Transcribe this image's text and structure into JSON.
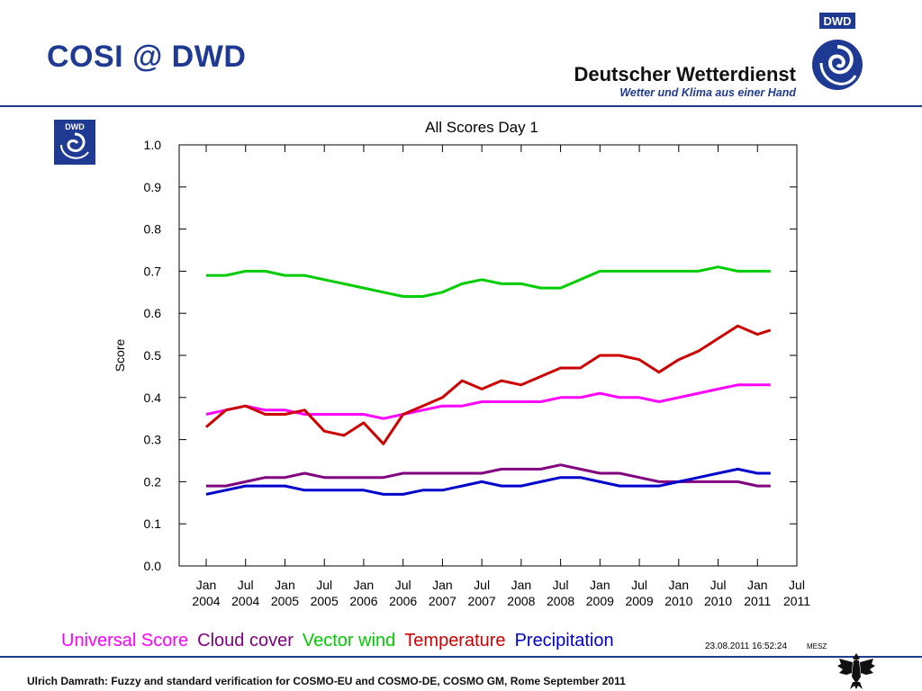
{
  "slide": {
    "title": "COSI @ DWD",
    "brand_name": "Deutscher Wetterdienst",
    "brand_slogan": "Wetter und Klima aus einer Hand",
    "logo_text": "DWD",
    "small_logo_text": "DWD",
    "footer": "Ulrich Damrath: Fuzzy and standard verification for COSMO-EU and COSMO-DE, COSMO GM, Rome September 2011",
    "accent_color": "#1f3a93"
  },
  "chart_data": {
    "type": "line",
    "title": "All Scores  Day 1",
    "xlabel": "",
    "ylabel": "Score",
    "ylim": [
      0,
      1
    ],
    "yticks": [
      "0.0",
      "0.1",
      "0.2",
      "0.3",
      "0.4",
      "0.5",
      "0.6",
      "0.7",
      "0.8",
      "0.9",
      "1.0"
    ],
    "xlim": [
      "2004-01",
      "2011-07"
    ],
    "xticks": [
      {
        "month": "Jan",
        "year": "2004"
      },
      {
        "month": "Jul",
        "year": "2004"
      },
      {
        "month": "Jan",
        "year": "2005"
      },
      {
        "month": "Jul",
        "year": "2005"
      },
      {
        "month": "Jan",
        "year": "2006"
      },
      {
        "month": "Jul",
        "year": "2006"
      },
      {
        "month": "Jan",
        "year": "2007"
      },
      {
        "month": "Jul",
        "year": "2007"
      },
      {
        "month": "Jan",
        "year": "2008"
      },
      {
        "month": "Jul",
        "year": "2008"
      },
      {
        "month": "Jan",
        "year": "2009"
      },
      {
        "month": "Jul",
        "year": "2009"
      },
      {
        "month": "Jan",
        "year": "2010"
      },
      {
        "month": "Jul",
        "year": "2010"
      },
      {
        "month": "Jan",
        "year": "2011"
      },
      {
        "month": "Jul",
        "year": "2011"
      }
    ],
    "x": [
      "2004-01",
      "2004-04",
      "2004-07",
      "2004-10",
      "2005-01",
      "2005-04",
      "2005-07",
      "2005-10",
      "2006-01",
      "2006-04",
      "2006-07",
      "2006-10",
      "2007-01",
      "2007-04",
      "2007-07",
      "2007-10",
      "2008-01",
      "2008-04",
      "2008-07",
      "2008-10",
      "2009-01",
      "2009-04",
      "2009-07",
      "2009-10",
      "2010-01",
      "2010-04",
      "2010-07",
      "2010-10",
      "2011-01",
      "2011-03"
    ],
    "series": [
      {
        "name": "Universal Score",
        "color": "#ff00ff",
        "values": [
          0.36,
          0.37,
          0.38,
          0.37,
          0.37,
          0.36,
          0.36,
          0.36,
          0.36,
          0.35,
          0.36,
          0.37,
          0.38,
          0.38,
          0.39,
          0.39,
          0.39,
          0.39,
          0.4,
          0.4,
          0.41,
          0.4,
          0.4,
          0.39,
          0.4,
          0.41,
          0.42,
          0.43,
          0.43,
          0.43
        ]
      },
      {
        "name": "Cloud cover",
        "color": "#800080",
        "values": [
          0.19,
          0.19,
          0.2,
          0.21,
          0.21,
          0.22,
          0.21,
          0.21,
          0.21,
          0.21,
          0.22,
          0.22,
          0.22,
          0.22,
          0.22,
          0.23,
          0.23,
          0.23,
          0.24,
          0.23,
          0.22,
          0.22,
          0.21,
          0.2,
          0.2,
          0.2,
          0.2,
          0.2,
          0.19,
          0.19
        ]
      },
      {
        "name": "Vector wind",
        "color": "#00cc00",
        "values": [
          0.69,
          0.69,
          0.7,
          0.7,
          0.69,
          0.69,
          0.68,
          0.67,
          0.66,
          0.65,
          0.64,
          0.64,
          0.65,
          0.67,
          0.68,
          0.67,
          0.67,
          0.66,
          0.66,
          0.68,
          0.7,
          0.7,
          0.7,
          0.7,
          0.7,
          0.7,
          0.71,
          0.7,
          0.7,
          0.7
        ]
      },
      {
        "name": "Temperature",
        "color": "#cc0000",
        "values": [
          0.33,
          0.37,
          0.38,
          0.36,
          0.36,
          0.37,
          0.32,
          0.31,
          0.34,
          0.29,
          0.36,
          0.38,
          0.4,
          0.44,
          0.42,
          0.44,
          0.43,
          0.45,
          0.47,
          0.47,
          0.5,
          0.5,
          0.49,
          0.46,
          0.49,
          0.51,
          0.54,
          0.57,
          0.55,
          0.56
        ]
      },
      {
        "name": "Precipitation",
        "color": "#0000cc",
        "values": [
          0.17,
          0.18,
          0.19,
          0.19,
          0.19,
          0.18,
          0.18,
          0.18,
          0.18,
          0.17,
          0.17,
          0.18,
          0.18,
          0.19,
          0.2,
          0.19,
          0.19,
          0.2,
          0.21,
          0.21,
          0.2,
          0.19,
          0.19,
          0.19,
          0.2,
          0.21,
          0.22,
          0.23,
          0.22,
          0.22
        ]
      }
    ],
    "timestamp": "23.08.2011  16:52:24",
    "timestamp_zone": "MESZ",
    "grid": false,
    "legend_placement": "bottom"
  }
}
